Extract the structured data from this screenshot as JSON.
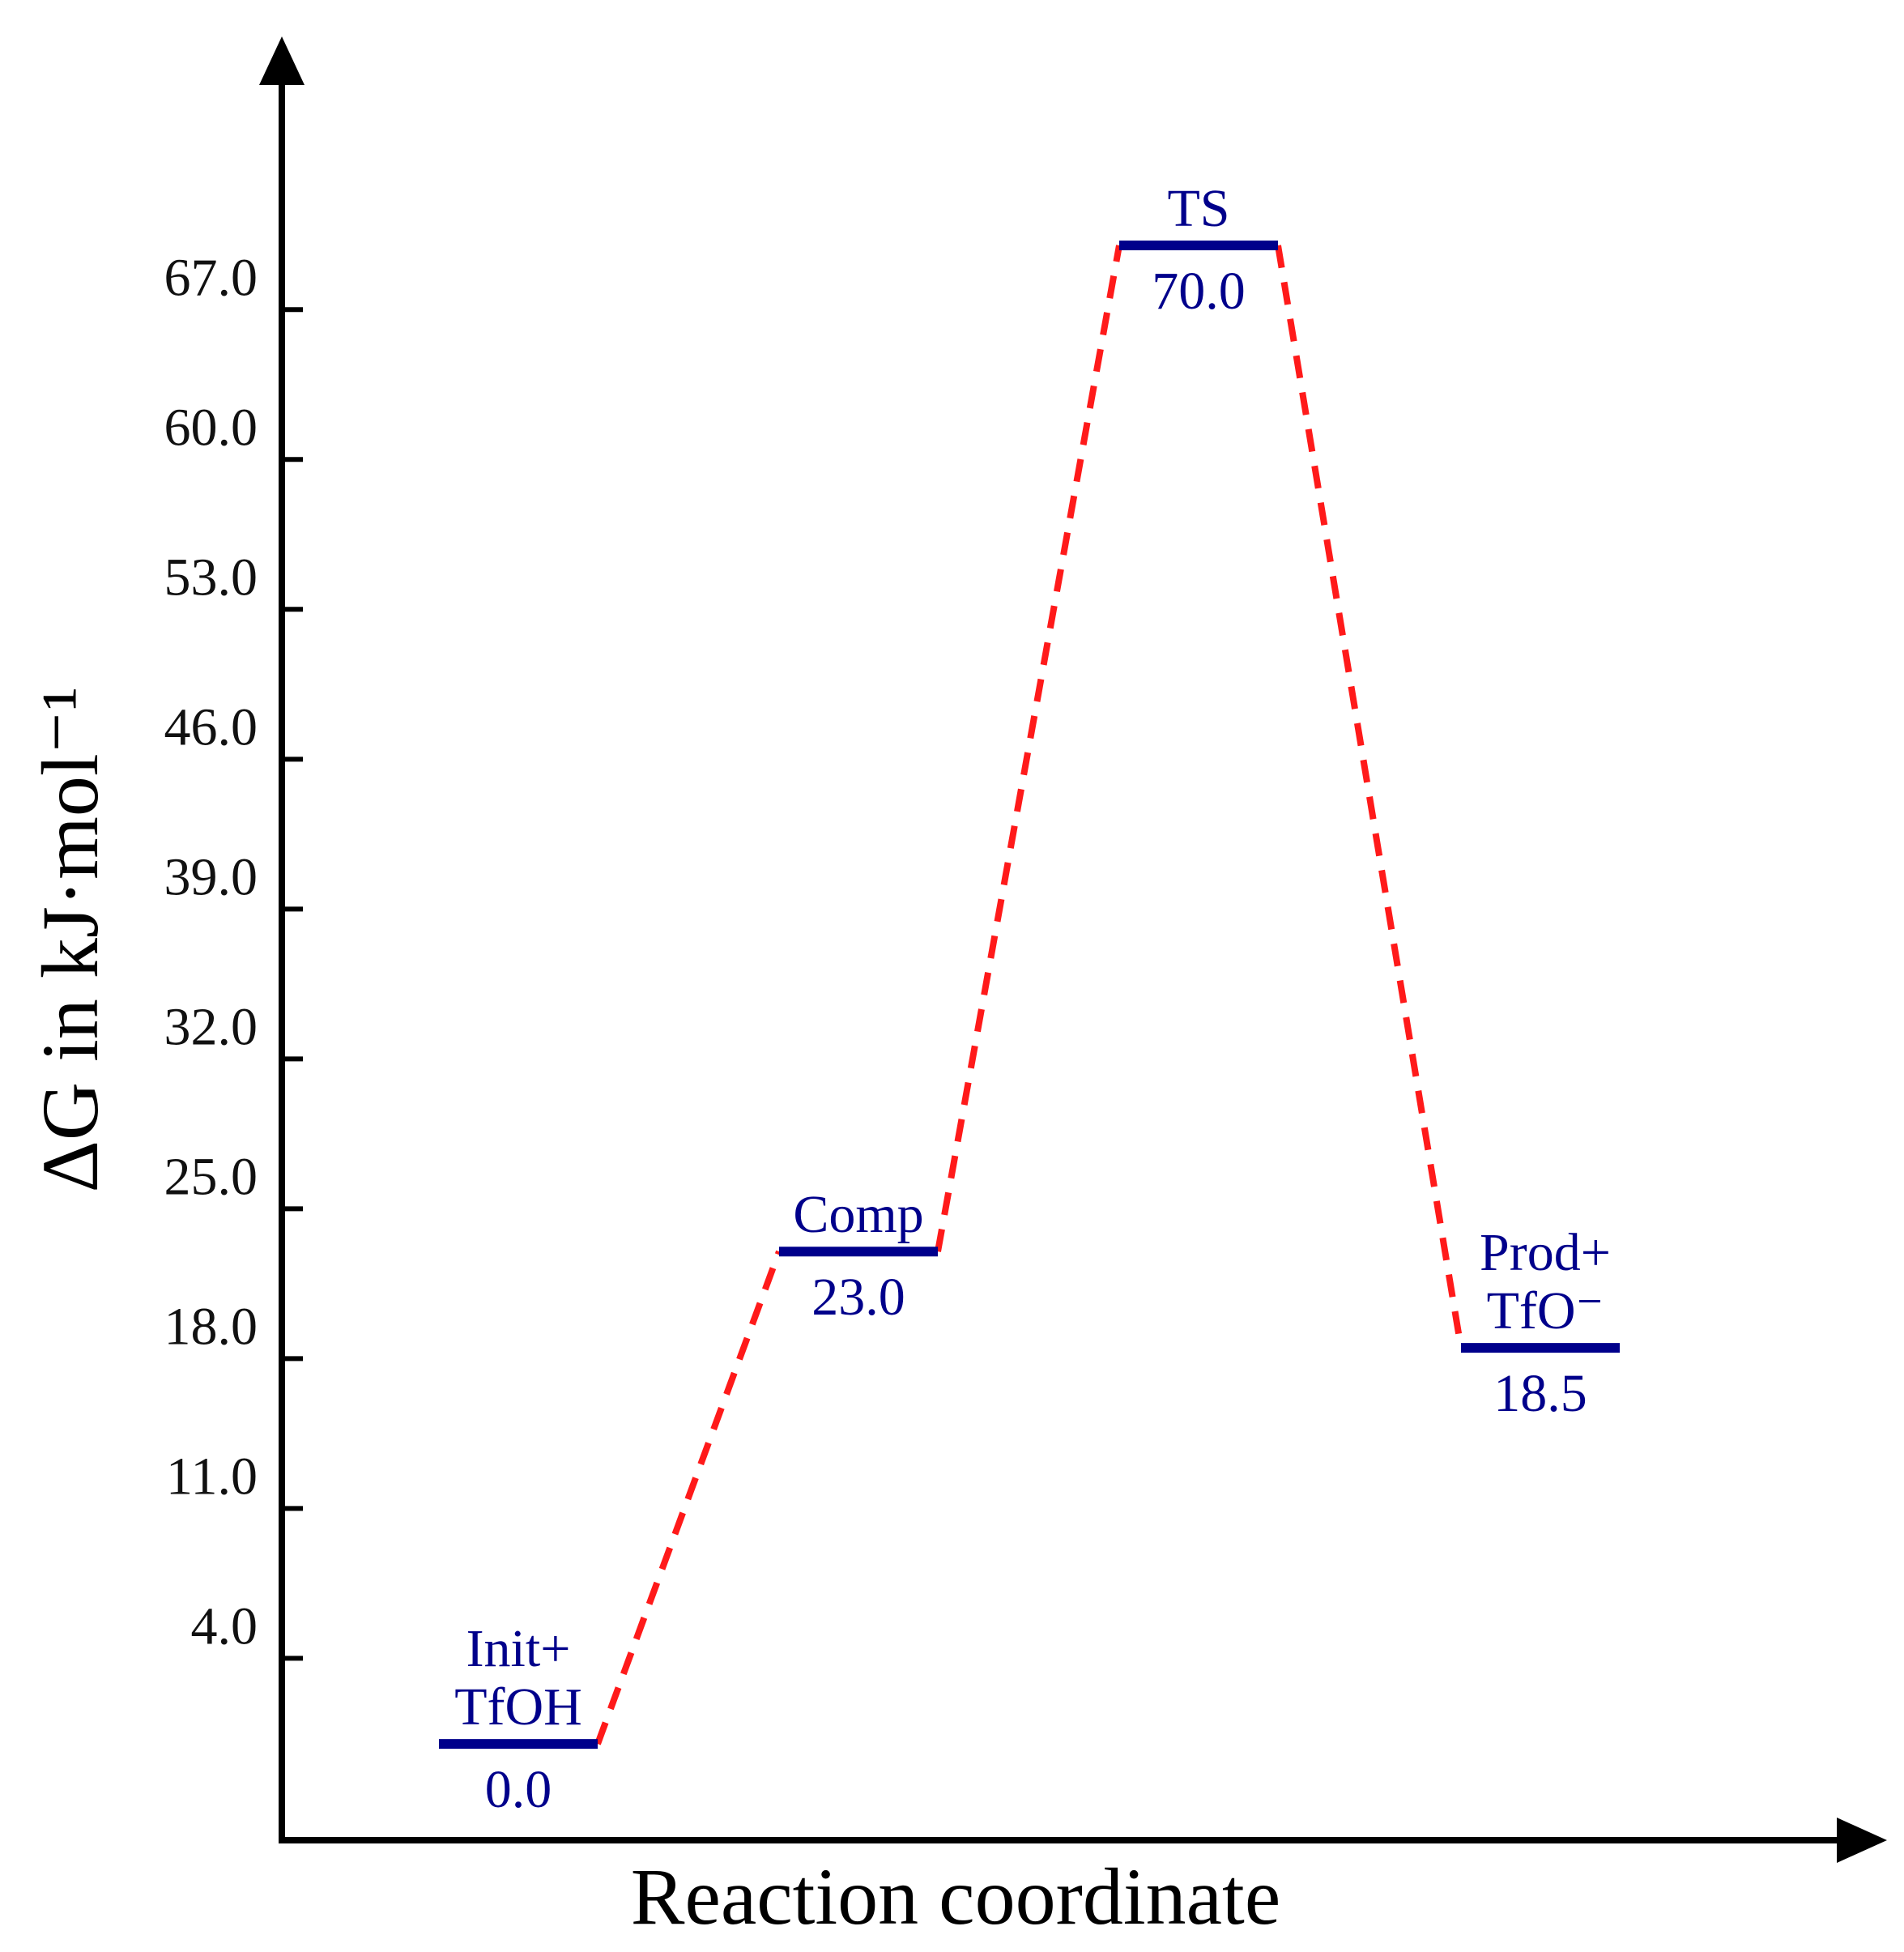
{
  "chart_data": {
    "type": "line",
    "title": "",
    "xlabel": "Reaction coordinate",
    "ylabel": "ΔG in kJ·mol⁻¹",
    "yticks": [
      "4.0",
      "11.0",
      "18.0",
      "25.0",
      "32.0",
      "39.0",
      "46.0",
      "53.0",
      "60.0",
      "67.0"
    ],
    "ylim": [
      -4.5,
      77
    ],
    "grid": false,
    "legend": "none",
    "colors": {
      "level": "#00008b",
      "connector": "#ff1a1a",
      "axis": "#000000"
    },
    "states": [
      {
        "name": [
          "Init+",
          "TfOH"
        ],
        "value": 0.0,
        "value_label": "0.0"
      },
      {
        "name": [
          "Comp"
        ],
        "value": 23.0,
        "value_label": "23.0"
      },
      {
        "name": [
          "TS"
        ],
        "value": 70.0,
        "value_label": "70.0"
      },
      {
        "name": [
          "Prod+",
          "TfO⁻"
        ],
        "value": 18.5,
        "value_label": "18.5"
      }
    ]
  }
}
